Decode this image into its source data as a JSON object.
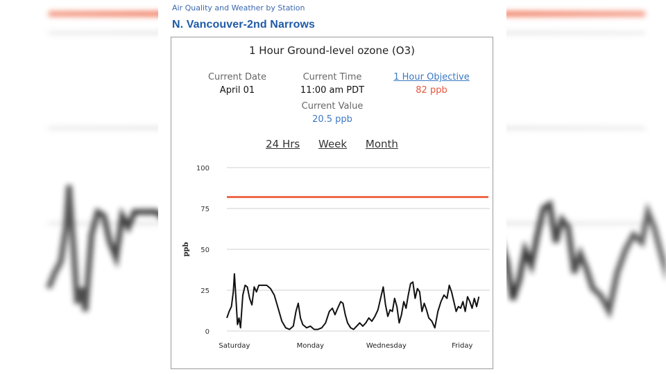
{
  "breadcrumb": "Air Quality and Weather by Station",
  "station_name": "N. Vancouver-2nd Narrows",
  "card": {
    "title": "1 Hour Ground-level ozone (O3)",
    "current_date_label": "Current Date",
    "current_date": "April 01",
    "current_time_label": "Current Time",
    "current_time": "11:00 am PDT",
    "objective_label": "1 Hour Objective",
    "objective_value": "82 ppb",
    "current_value_label": "Current Value",
    "current_value": "20.5 ppb",
    "ranges": [
      "24 Hrs",
      "Week",
      "Month"
    ]
  },
  "colors": {
    "objective_line": "#ee6a4a",
    "series": "#111111",
    "link": "#3a78c2",
    "grid": "#cfcfcf"
  },
  "chart_data": {
    "type": "line",
    "ylabel": "ppb",
    "ylim": [
      0,
      100
    ],
    "yticks": [
      0,
      25,
      50,
      75,
      100
    ],
    "xlim": [
      0,
      7
    ],
    "xticks": [
      {
        "x": 0.2,
        "label": "Saturday"
      },
      {
        "x": 2.2,
        "label": "Monday"
      },
      {
        "x": 4.2,
        "label": "Wednesday"
      },
      {
        "x": 6.2,
        "label": "Friday"
      }
    ],
    "objective": 82,
    "grid": true,
    "series": [
      {
        "values": [
          [
            0.0,
            8
          ],
          [
            0.06,
            12
          ],
          [
            0.12,
            15
          ],
          [
            0.17,
            24
          ],
          [
            0.2,
            35
          ],
          [
            0.24,
            20
          ],
          [
            0.28,
            4
          ],
          [
            0.32,
            8
          ],
          [
            0.36,
            2
          ],
          [
            0.42,
            22
          ],
          [
            0.48,
            28
          ],
          [
            0.54,
            27
          ],
          [
            0.6,
            20
          ],
          [
            0.66,
            16
          ],
          [
            0.72,
            27
          ],
          [
            0.78,
            24
          ],
          [
            0.84,
            28
          ],
          [
            0.95,
            28
          ],
          [
            1.05,
            28
          ],
          [
            1.15,
            26
          ],
          [
            1.25,
            22
          ],
          [
            1.35,
            14
          ],
          [
            1.45,
            6
          ],
          [
            1.55,
            2
          ],
          [
            1.65,
            1
          ],
          [
            1.75,
            3
          ],
          [
            1.82,
            12
          ],
          [
            1.88,
            17
          ],
          [
            1.94,
            8
          ],
          [
            2.0,
            4
          ],
          [
            2.1,
            2
          ],
          [
            2.2,
            3
          ],
          [
            2.3,
            1
          ],
          [
            2.4,
            1
          ],
          [
            2.5,
            2
          ],
          [
            2.6,
            5
          ],
          [
            2.7,
            12
          ],
          [
            2.78,
            14
          ],
          [
            2.85,
            10
          ],
          [
            2.92,
            14
          ],
          [
            3.0,
            18
          ],
          [
            3.06,
            17
          ],
          [
            3.12,
            10
          ],
          [
            3.18,
            5
          ],
          [
            3.26,
            2
          ],
          [
            3.34,
            1
          ],
          [
            3.42,
            3
          ],
          [
            3.5,
            5
          ],
          [
            3.58,
            3
          ],
          [
            3.66,
            5
          ],
          [
            3.74,
            8
          ],
          [
            3.82,
            6
          ],
          [
            3.9,
            9
          ],
          [
            3.98,
            13
          ],
          [
            4.05,
            20
          ],
          [
            4.12,
            27
          ],
          [
            4.18,
            16
          ],
          [
            4.24,
            9
          ],
          [
            4.3,
            13
          ],
          [
            4.36,
            12
          ],
          [
            4.42,
            20
          ],
          [
            4.48,
            15
          ],
          [
            4.54,
            5
          ],
          [
            4.6,
            10
          ],
          [
            4.66,
            18
          ],
          [
            4.72,
            14
          ],
          [
            4.78,
            22
          ],
          [
            4.84,
            29
          ],
          [
            4.9,
            30
          ],
          [
            4.96,
            20
          ],
          [
            5.02,
            26
          ],
          [
            5.08,
            24
          ],
          [
            5.14,
            12
          ],
          [
            5.2,
            17
          ],
          [
            5.26,
            13
          ],
          [
            5.32,
            8
          ],
          [
            5.4,
            6
          ],
          [
            5.48,
            2
          ],
          [
            5.56,
            12
          ],
          [
            5.64,
            18
          ],
          [
            5.72,
            22
          ],
          [
            5.8,
            20
          ],
          [
            5.86,
            28
          ],
          [
            5.92,
            24
          ],
          [
            5.98,
            18
          ],
          [
            6.04,
            12
          ],
          [
            6.1,
            15
          ],
          [
            6.16,
            14
          ],
          [
            6.22,
            18
          ],
          [
            6.28,
            12
          ],
          [
            6.34,
            21
          ],
          [
            6.4,
            18
          ],
          [
            6.46,
            14
          ],
          [
            6.52,
            20
          ],
          [
            6.58,
            15
          ],
          [
            6.64,
            21
          ]
        ]
      }
    ]
  }
}
